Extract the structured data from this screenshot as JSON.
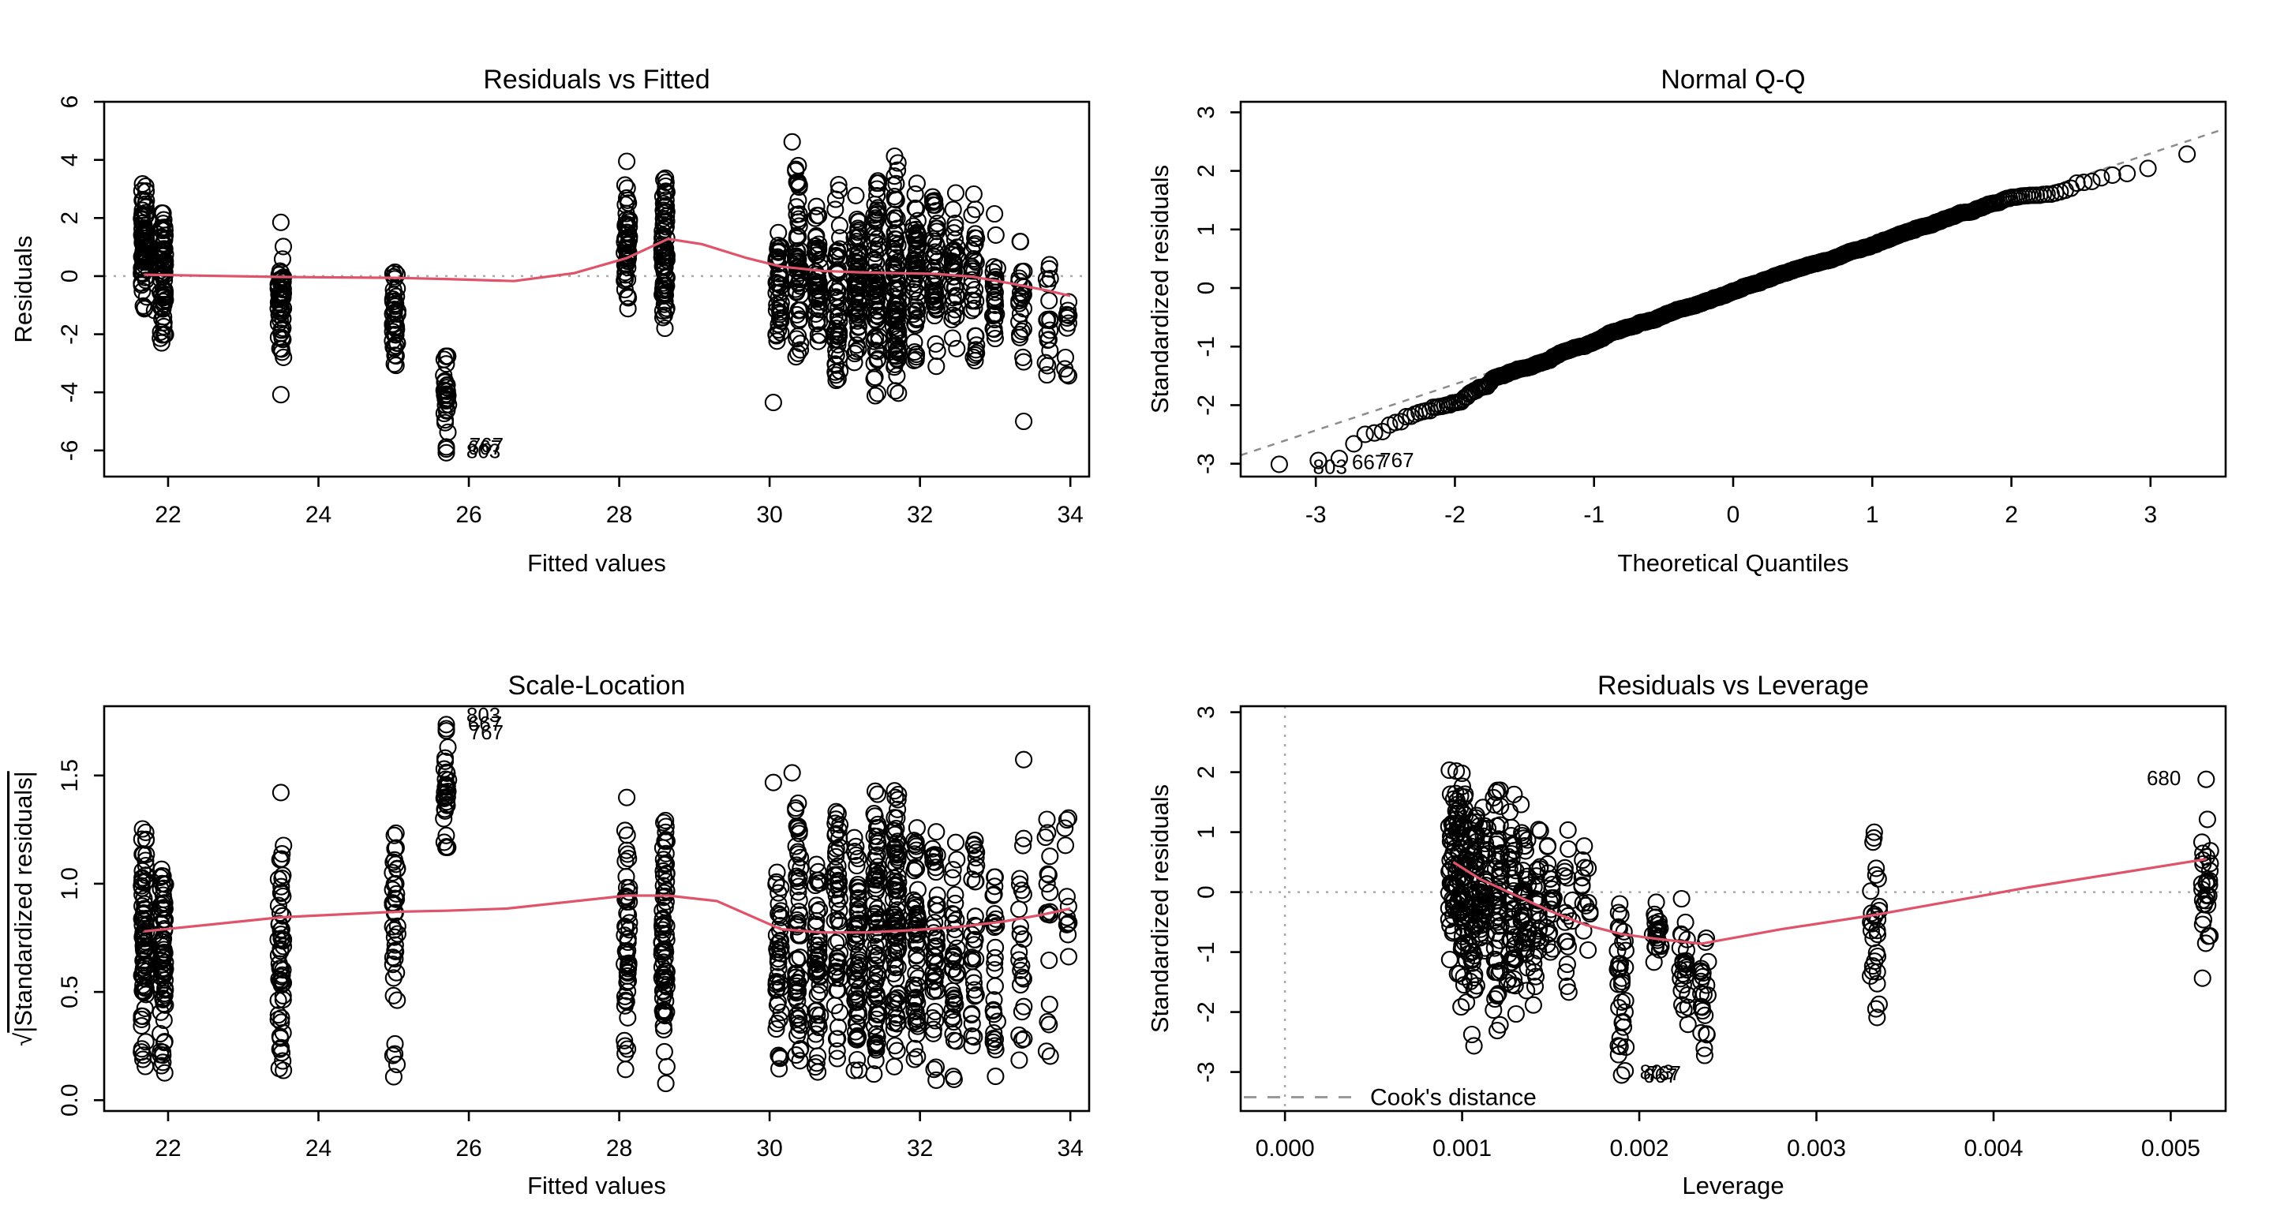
{
  "figure": {
    "background": "#ffffff",
    "description": "R lm() diagnostic plots, 2x2 grid"
  },
  "style": {
    "point_color": "#000000",
    "smoother_color": "#DF536B",
    "ref_gray": "#a8a8a8",
    "qqline_gray": "#8c8c8c",
    "legend_gray": "#999999",
    "std_divisor": 2.02
  },
  "chart_data": [
    {
      "id": "residuals-vs-fitted",
      "type": "scatter",
      "title": "Residuals vs Fitted",
      "xlabel": "Fitted values",
      "ylabel": "Residuals",
      "xlim": [
        21.15,
        34.25
      ],
      "ylim": [
        -6.9,
        6.0
      ],
      "xticks": [
        22,
        24,
        26,
        28,
        30,
        32,
        34
      ],
      "xtick_labels": [
        "22",
        "24",
        "26",
        "28",
        "30",
        "32",
        "34"
      ],
      "yticks": [
        -6,
        -4,
        -2,
        0,
        2,
        4,
        6
      ],
      "ytick_labels": [
        "-6",
        "-4",
        "-2",
        "0",
        "2",
        "4",
        "6"
      ],
      "refs": [
        "h0-dotted"
      ],
      "seed": 42,
      "x_jitter": 0.07,
      "clusters": [
        {
          "x": 21.68,
          "n": 85,
          "ymin": -1.35,
          "ymax": 3.72
        },
        {
          "x": 21.93,
          "n": 75,
          "ymin": -2.62,
          "ymax": 2.85
        },
        {
          "x": 23.5,
          "n": 60,
          "ymin": -3.35,
          "ymax": 1.1
        },
        {
          "x": 25.02,
          "n": 42,
          "ymin": -3.35,
          "ymax": 0.5
        },
        {
          "x": 25.7,
          "n": 30,
          "ymin": -5.75,
          "ymax": -2.6
        },
        {
          "x": 28.1,
          "n": 55,
          "ymin": -1.5,
          "ymax": 3.6
        },
        {
          "x": 28.6,
          "n": 78,
          "ymin": -2.1,
          "ymax": 3.8
        },
        {
          "x": 30.12,
          "n": 45,
          "ymin": -2.5,
          "ymax": 2.1
        },
        {
          "x": 30.38,
          "n": 60,
          "ymin": -3.4,
          "ymax": 4.4
        },
        {
          "x": 30.64,
          "n": 50,
          "ymin": -3.1,
          "ymax": 2.6
        },
        {
          "x": 30.9,
          "n": 55,
          "ymin": -4.5,
          "ymax": 3.4
        },
        {
          "x": 31.16,
          "n": 65,
          "ymin": -3.3,
          "ymax": 3.5
        },
        {
          "x": 31.42,
          "n": 75,
          "ymin": -4.6,
          "ymax": 3.9
        },
        {
          "x": 31.68,
          "n": 85,
          "ymin": -4.7,
          "ymax": 4.55
        },
        {
          "x": 31.94,
          "n": 60,
          "ymin": -3.9,
          "ymax": 4.2
        },
        {
          "x": 32.2,
          "n": 48,
          "ymin": -3.5,
          "ymax": 3.4
        },
        {
          "x": 32.46,
          "n": 40,
          "ymin": -2.8,
          "ymax": 3.0
        },
        {
          "x": 32.72,
          "n": 33,
          "ymin": -4.1,
          "ymax": 3.3
        },
        {
          "x": 33.0,
          "n": 28,
          "ymin": -3.8,
          "ymax": 2.5
        },
        {
          "x": 33.35,
          "n": 24,
          "ymin": -4.2,
          "ymax": 1.9
        },
        {
          "x": 33.7,
          "n": 18,
          "ymin": -3.9,
          "ymax": 1.4
        },
        {
          "x": 33.95,
          "n": 12,
          "ymin": -3.6,
          "ymax": -0.2
        }
      ],
      "points": [
        [
          21.82,
          -1.18
        ],
        [
          23.5,
          1.85
        ],
        [
          23.5,
          -4.08
        ],
        [
          28.1,
          3.95
        ],
        [
          30.05,
          -4.35
        ],
        [
          30.3,
          4.62
        ],
        [
          33.38,
          -5.0
        ],
        [
          25.7,
          -6.08
        ],
        [
          25.7,
          -5.95
        ],
        [
          25.7,
          -5.88
        ]
      ],
      "smoother": [
        [
          21.68,
          0.05
        ],
        [
          23.5,
          -0.03
        ],
        [
          25.0,
          -0.06
        ],
        [
          25.7,
          -0.1
        ],
        [
          26.6,
          -0.17
        ],
        [
          27.4,
          0.1
        ],
        [
          28.1,
          0.62
        ],
        [
          28.65,
          1.28
        ],
        [
          29.1,
          1.1
        ],
        [
          29.7,
          0.62
        ],
        [
          30.15,
          0.33
        ],
        [
          30.7,
          0.18
        ],
        [
          31.2,
          0.13
        ],
        [
          31.7,
          0.1
        ],
        [
          32.2,
          0.08
        ],
        [
          32.7,
          -0.02
        ],
        [
          33.2,
          -0.25
        ],
        [
          33.7,
          -0.5
        ],
        [
          34.0,
          -0.68
        ]
      ],
      "labels": [
        {
          "text": "803",
          "x": 25.82,
          "y": -6.02,
          "anchor": "start"
        },
        {
          "text": "667",
          "x": 25.84,
          "y": -5.9,
          "anchor": "start"
        },
        {
          "text": "767",
          "x": 25.86,
          "y": -5.82,
          "anchor": "start"
        }
      ]
    },
    {
      "id": "normal-qq",
      "type": "scatter",
      "title": "Normal Q-Q",
      "xlabel": "Theoretical Quantiles",
      "ylabel": "Standardized residuals",
      "xlim": [
        -3.54,
        3.54
      ],
      "ylim": [
        -3.22,
        3.18
      ],
      "xticks": [
        -3,
        -2,
        -1,
        0,
        1,
        2,
        3
      ],
      "xtick_labels": [
        "-3",
        "-2",
        "-1",
        "0",
        "1",
        "2",
        "3"
      ],
      "yticks": [
        -3,
        -2,
        -1,
        0,
        1,
        2,
        3
      ],
      "ytick_labels": [
        "-3",
        "-2",
        "-1",
        "0",
        "1",
        "2",
        "3"
      ],
      "refs": [
        "qqline"
      ],
      "derived": "qq",
      "labels": [
        {
          "text": "803",
          "x": -3.1,
          "y": -3.05,
          "anchor": "start"
        },
        {
          "text": "667",
          "x": -2.82,
          "y": -2.97,
          "anchor": "start"
        },
        {
          "text": "767",
          "x": -2.62,
          "y": -2.94,
          "anchor": "start"
        }
      ]
    },
    {
      "id": "scale-location",
      "type": "scatter",
      "title": "Scale-Location",
      "xlabel": "Fitted values",
      "ylabel": "√|Standardized residuals|",
      "xlim": [
        21.15,
        34.25
      ],
      "ylim": [
        -0.05,
        1.82
      ],
      "xticks": [
        22,
        24,
        26,
        28,
        30,
        32,
        34
      ],
      "xtick_labels": [
        "22",
        "24",
        "26",
        "28",
        "30",
        "32",
        "34"
      ],
      "yticks": [
        0,
        0.5,
        1,
        1.5
      ],
      "ytick_labels": [
        "0.0",
        "0.5",
        "1.0",
        "1.5"
      ],
      "refs": [],
      "derived": "scale",
      "smoother": [
        [
          21.68,
          0.78
        ],
        [
          23.5,
          0.845
        ],
        [
          25.0,
          0.87
        ],
        [
          25.7,
          0.875
        ],
        [
          26.5,
          0.885
        ],
        [
          28.1,
          0.945
        ],
        [
          28.65,
          0.945
        ],
        [
          29.3,
          0.92
        ],
        [
          30.15,
          0.79
        ],
        [
          30.7,
          0.775
        ],
        [
          31.3,
          0.775
        ],
        [
          31.9,
          0.785
        ],
        [
          32.5,
          0.8
        ],
        [
          33.1,
          0.825
        ],
        [
          33.6,
          0.855
        ],
        [
          34.0,
          0.885
        ]
      ],
      "labels": [
        {
          "text": "803",
          "x": 25.82,
          "y": 1.78,
          "anchor": "start"
        },
        {
          "text": "667",
          "x": 25.84,
          "y": 1.74,
          "anchor": "start"
        },
        {
          "text": "767",
          "x": 25.86,
          "y": 1.7,
          "anchor": "start"
        }
      ]
    },
    {
      "id": "residuals-vs-leverage",
      "type": "scatter",
      "title": "Residuals vs Leverage",
      "xlabel": "Leverage",
      "ylabel": "Standardized residuals",
      "xlim": [
        -0.00025,
        0.00531
      ],
      "ylim": [
        -3.65,
        3.1
      ],
      "xticks": [
        0,
        0.001,
        0.002,
        0.003,
        0.004,
        0.005
      ],
      "xtick_labels": [
        "0.000",
        "0.001",
        "0.002",
        "0.003",
        "0.004",
        "0.005"
      ],
      "yticks": [
        -3,
        -2,
        -1,
        0,
        1,
        2,
        3
      ],
      "ytick_labels": [
        "-3",
        "-2",
        "-1",
        "0",
        "1",
        "2",
        "3"
      ],
      "refs": [
        "h0-dotted",
        "v0-dotted"
      ],
      "seed": 7,
      "x_jitter": 5e-05,
      "clusters": [
        {
          "x": 0.00095,
          "n": 55,
          "ymin": -1.5,
          "ymax": 2.3
        },
        {
          "x": 0.001,
          "n": 65,
          "ymin": -2.3,
          "ymax": 2.3
        },
        {
          "x": 0.00106,
          "n": 55,
          "ymin": -2.6,
          "ymax": 2.2
        },
        {
          "x": 0.00112,
          "n": 45,
          "ymin": -2.1,
          "ymax": 1.9
        },
        {
          "x": 0.0012,
          "n": 55,
          "ymin": -2.4,
          "ymax": 2.1
        },
        {
          "x": 0.00128,
          "n": 45,
          "ymin": -2.5,
          "ymax": 1.8
        },
        {
          "x": 0.00135,
          "n": 38,
          "ymin": -1.9,
          "ymax": 1.7
        },
        {
          "x": 0.00142,
          "n": 28,
          "ymin": -2.2,
          "ymax": 1.5
        },
        {
          "x": 0.0015,
          "n": 22,
          "ymin": -1.3,
          "ymax": 1.2
        },
        {
          "x": 0.0016,
          "n": 18,
          "ymin": -2.5,
          "ymax": 1.4
        },
        {
          "x": 0.0017,
          "n": 14,
          "ymin": -1.2,
          "ymax": 1.0
        },
        {
          "x": 0.0019,
          "n": 32,
          "ymin": -3.08,
          "ymax": 0.3
        },
        {
          "x": 0.0021,
          "n": 22,
          "ymin": -1.5,
          "ymax": 0.2
        },
        {
          "x": 0.00225,
          "n": 26,
          "ymin": -2.6,
          "ymax": 0.1
        },
        {
          "x": 0.00237,
          "n": 22,
          "ymin": -2.9,
          "ymax": -0.3
        },
        {
          "x": 0.00333,
          "n": 30,
          "ymin": -2.3,
          "ymax": 1.25
        },
        {
          "x": 0.0052,
          "n": 30,
          "ymin": -1.5,
          "ymax": 1.9
        }
      ],
      "points": [
        [
          0.0052,
          1.88
        ],
        [
          0.0019,
          -3.05
        ],
        [
          0.00192,
          -2.98
        ]
      ],
      "smoother": [
        [
          0.00095,
          0.5
        ],
        [
          0.0011,
          0.22
        ],
        [
          0.0013,
          -0.05
        ],
        [
          0.0015,
          -0.32
        ],
        [
          0.0017,
          -0.55
        ],
        [
          0.0019,
          -0.7
        ],
        [
          0.0021,
          -0.78
        ],
        [
          0.00235,
          -0.86
        ],
        [
          0.0028,
          -0.62
        ],
        [
          0.00333,
          -0.38
        ],
        [
          0.0042,
          0.08
        ],
        [
          0.0052,
          0.55
        ]
      ],
      "labels": [
        {
          "text": "680",
          "x": 0.00512,
          "y": 1.9,
          "anchor": "end"
        },
        {
          "text": "803",
          "x": 0.00194,
          "y": -3.0,
          "anchor": "start"
        },
        {
          "text": "667",
          "x": 0.00196,
          "y": -3.06,
          "anchor": "start"
        },
        {
          "text": "767",
          "x": 0.00198,
          "y": -3.02,
          "anchor": "start"
        }
      ],
      "legend": {
        "text": "Cook's distance"
      }
    }
  ]
}
